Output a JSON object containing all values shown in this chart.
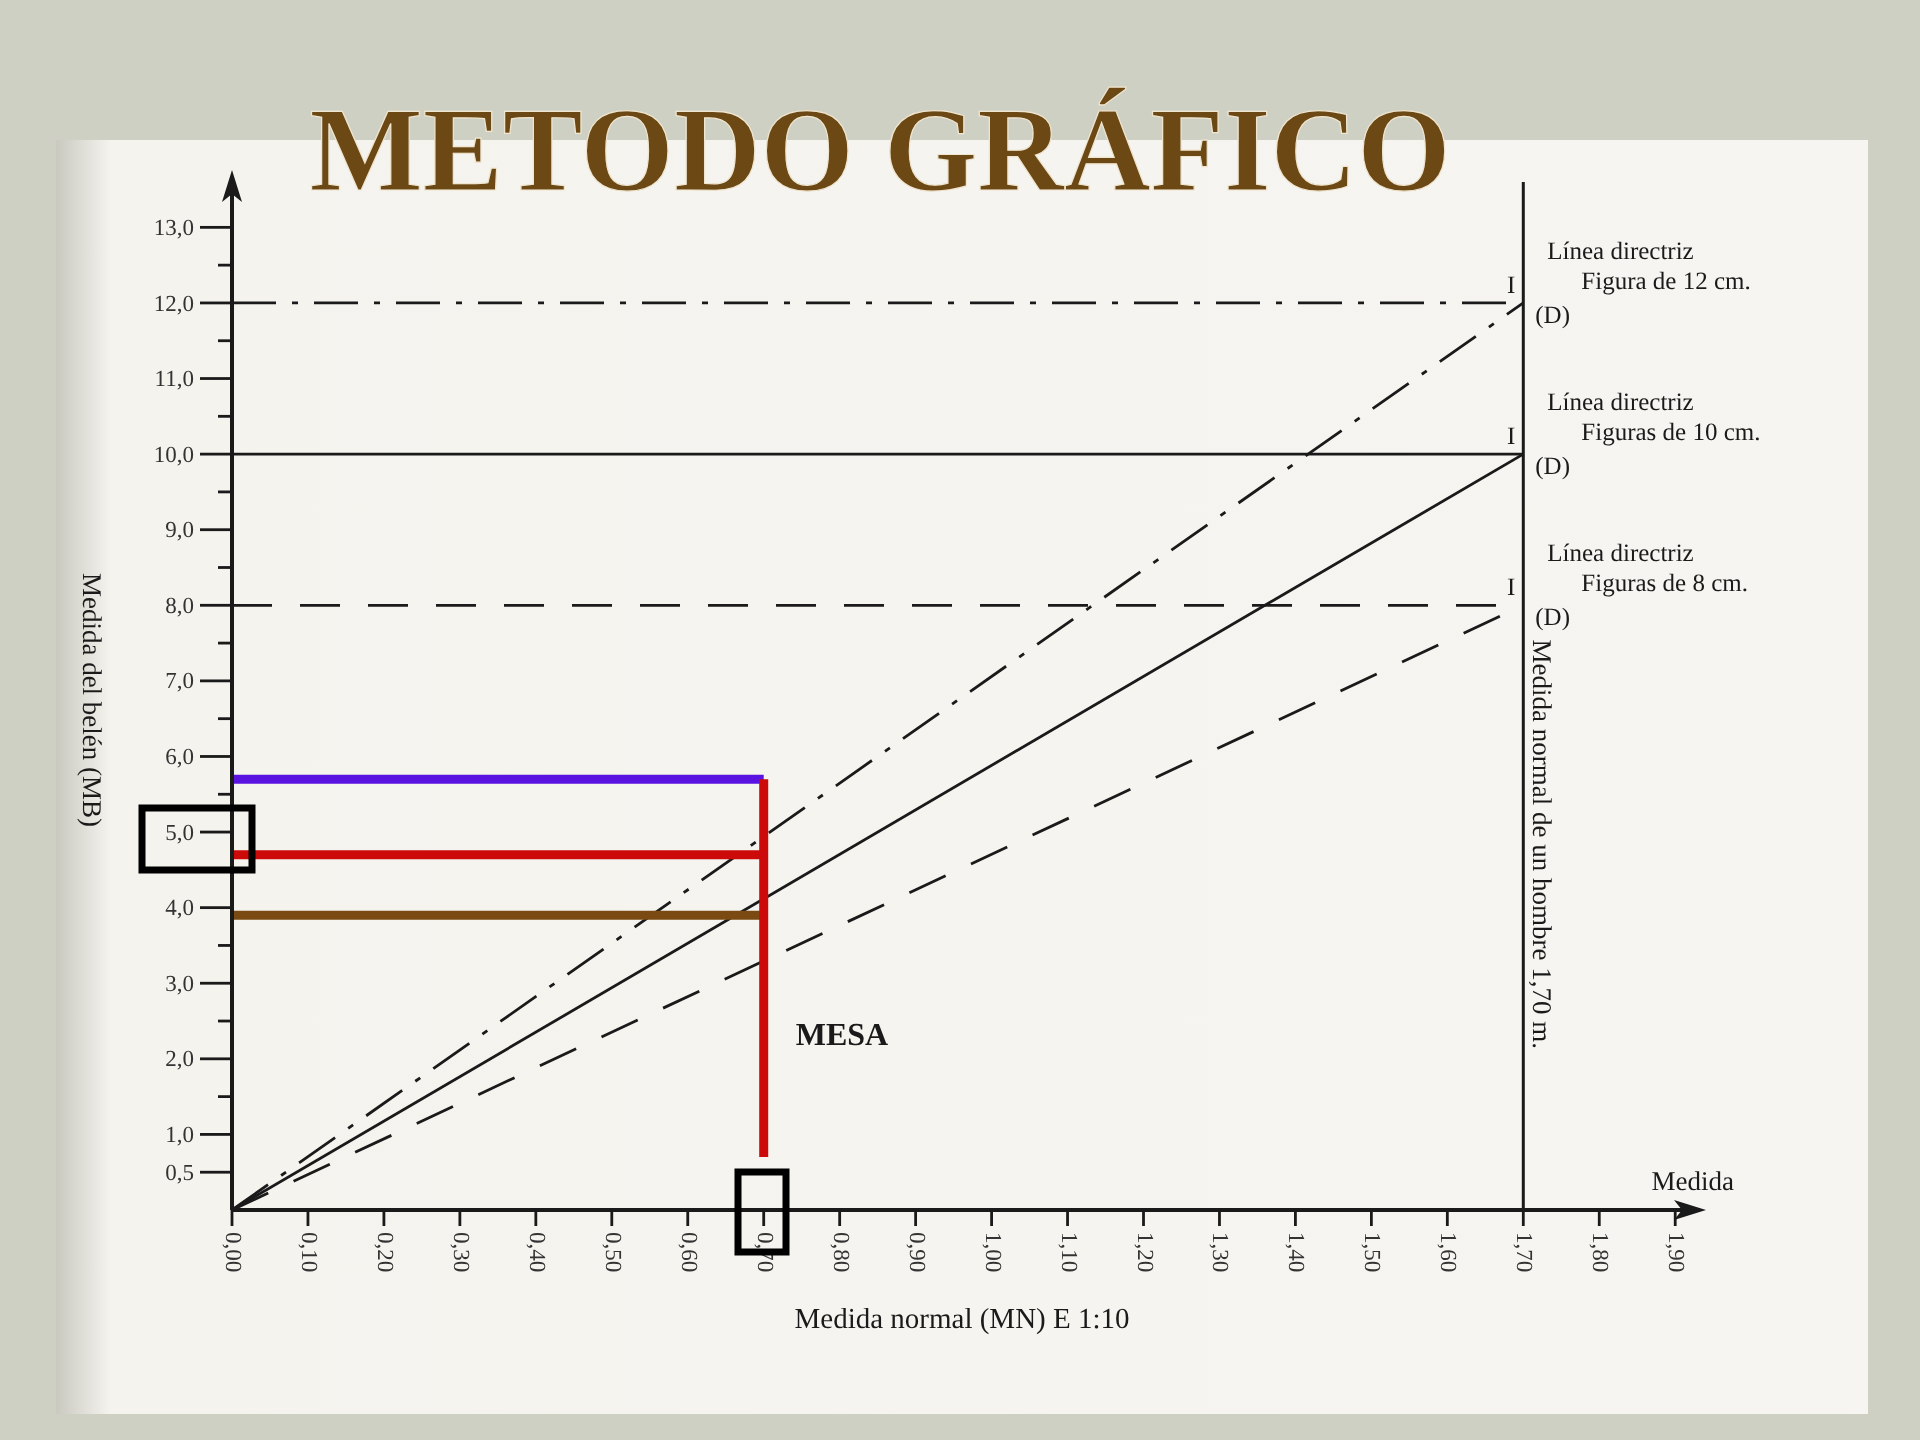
{
  "chart_data": {
    "type": "line",
    "title": "METODO GRÁFICO",
    "xlabel": "Medida normal (MN) E 1:10",
    "ylabel": "Medida del belén (MB)",
    "xlim": [
      0,
      1.93
    ],
    "ylim": [
      0,
      13.6
    ],
    "xticks": [
      {
        "value": 0,
        "label": "0,00"
      },
      {
        "value": 0.1,
        "label": "0,10"
      },
      {
        "value": 0.2,
        "label": "0,20"
      },
      {
        "value": 0.3,
        "label": "0,30"
      },
      {
        "value": 0.4,
        "label": "0,40"
      },
      {
        "value": 0.5,
        "label": "0,50"
      },
      {
        "value": 0.6,
        "label": "0,60"
      },
      {
        "value": 0.7,
        "label": "0,70"
      },
      {
        "value": 0.8,
        "label": "0,80"
      },
      {
        "value": 0.9,
        "label": "0,90"
      },
      {
        "value": 1.0,
        "label": "1,00"
      },
      {
        "value": 1.1,
        "label": "1,10"
      },
      {
        "value": 1.2,
        "label": "1,20"
      },
      {
        "value": 1.3,
        "label": "1,30"
      },
      {
        "value": 1.4,
        "label": "1,40"
      },
      {
        "value": 1.5,
        "label": "1,50"
      },
      {
        "value": 1.6,
        "label": "1,60"
      },
      {
        "value": 1.7,
        "label": "1,70"
      },
      {
        "value": 1.8,
        "label": "1,80"
      },
      {
        "value": 1.9,
        "label": "1,90"
      }
    ],
    "yticks": [
      {
        "value": 0.5,
        "label": "0,5"
      },
      {
        "value": 1,
        "label": "1,0"
      },
      {
        "value": 1.5,
        "label": null
      },
      {
        "value": 2,
        "label": "2,0"
      },
      {
        "value": 2.5,
        "label": null
      },
      {
        "value": 3,
        "label": "3,0"
      },
      {
        "value": 3.5,
        "label": null
      },
      {
        "value": 4,
        "label": "4,0"
      },
      {
        "value": 4.5,
        "label": null
      },
      {
        "value": 5,
        "label": "5,0"
      },
      {
        "value": 5.5,
        "label": null
      },
      {
        "value": 6,
        "label": "6,0"
      },
      {
        "value": 6.5,
        "label": null
      },
      {
        "value": 7,
        "label": "7,0"
      },
      {
        "value": 7.5,
        "label": null
      },
      {
        "value": 8,
        "label": "8,0"
      },
      {
        "value": 8.5,
        "label": null
      },
      {
        "value": 9,
        "label": "9,0"
      },
      {
        "value": 9.5,
        "label": null
      },
      {
        "value": 10,
        "label": "10,0"
      },
      {
        "value": 10.5,
        "label": null
      },
      {
        "value": 11,
        "label": "11,0"
      },
      {
        "value": 11.5,
        "label": null
      },
      {
        "value": 12,
        "label": "12,0"
      },
      {
        "value": 12.5,
        "label": null
      },
      {
        "value": 13,
        "label": "13,0"
      }
    ],
    "series": [
      {
        "name": "Línea directriz\nFigura de 12 cm.",
        "color": "#1a1a1a",
        "line_style": "dashdot",
        "x": [
          0,
          1.7
        ],
        "values": [
          0,
          12
        ]
      },
      {
        "name": "Línea directriz\nFiguras de 10 cm.",
        "color": "#1a1a1a",
        "line_style": "solid",
        "x": [
          0,
          1.7
        ],
        "values": [
          0,
          10
        ]
      },
      {
        "name": "Línea directriz\nFiguras de 8 cm.",
        "color": "#1a1a1a",
        "line_style": "dashed",
        "x": [
          0,
          1.7
        ],
        "values": [
          0,
          8
        ]
      },
      {
        "color": "#1a1a1a",
        "line_style": "dashdot",
        "x": [
          0,
          1.7
        ],
        "values": [
          12,
          12
        ]
      },
      {
        "color": "#1a1a1a",
        "line_style": "solid",
        "x": [
          0,
          1.7
        ],
        "values": [
          10,
          10
        ]
      },
      {
        "color": "#1a1a1a",
        "line_style": "dashed",
        "x": [
          0,
          1.7
        ],
        "values": [
          8,
          8
        ]
      },
      {
        "color": "#5a12e0",
        "x": [
          0,
          0.7
        ],
        "values": [
          5.7,
          5.7
        ]
      },
      {
        "color": "#cc0a0a",
        "x": [
          0,
          0.7
        ],
        "values": [
          4.7,
          4.7
        ]
      },
      {
        "color": "#7a4a12",
        "x": [
          0,
          0.7
        ],
        "values": [
          3.9,
          3.9
        ]
      },
      {
        "name": "MESA",
        "color": "#cc0a0a",
        "x": [
          0.7,
          0.7
        ],
        "values": [
          0.7,
          5.7
        ]
      }
    ],
    "ref_lines": [
      {
        "axis": "x",
        "value": 1.7,
        "label": "Medida normal de un hombre 1,70 m.",
        "color": "#1a1a1a"
      }
    ],
    "annotations": [
      "Medida",
      "I",
      "(D)",
      "I",
      "(D)",
      "I",
      "(D)"
    ],
    "grid": false
  }
}
